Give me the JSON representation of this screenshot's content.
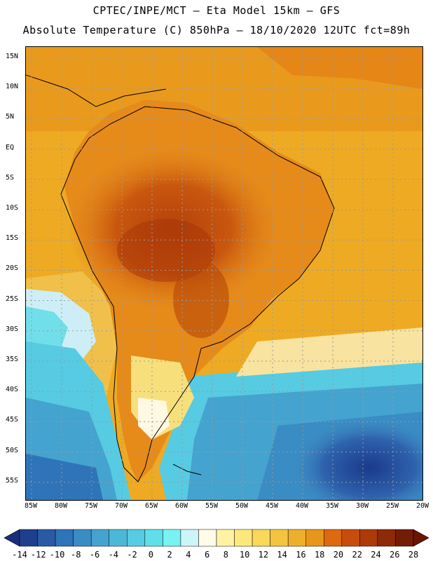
{
  "title_line1": "CPTEC/INPE/MCT –  Eta Model 15km – GFS",
  "title_line2": "Absolute Temperature (C) 850hPa – 18/10/2020 12UTC fct=89h",
  "lat_labels": [
    "15N",
    "10N",
    "5N",
    "EQ",
    "5S",
    "10S",
    "15S",
    "20S",
    "25S",
    "30S",
    "35S",
    "40S",
    "45S",
    "50S",
    "55S"
  ],
  "lon_labels": [
    "85W",
    "80W",
    "75W",
    "70W",
    "65W",
    "60W",
    "55W",
    "50W",
    "45W",
    "40W",
    "35W",
    "30W",
    "25W",
    "20W"
  ],
  "colorbar": {
    "labels": [
      "-14",
      "-12",
      "-10",
      "-8",
      "-6",
      "-4",
      "-2",
      "0",
      "2",
      "4",
      "6",
      "8",
      "10",
      "12",
      "14",
      "16",
      "18",
      "20",
      "22",
      "24",
      "26",
      "28"
    ],
    "colors": [
      "#1e3f8e",
      "#2a5aa3",
      "#2f73b8",
      "#3a8cc4",
      "#45a3cf",
      "#4cb8d8",
      "#56cbe2",
      "#5fdfea",
      "#78f2f2",
      "#cdf4f8",
      "#fffbe8",
      "#fff2a3",
      "#fee87c",
      "#f9d85a",
      "#f3c440",
      "#eeb02c",
      "#e8951c",
      "#dd6910",
      "#c94d0a",
      "#ad3a08",
      "#8e2a07",
      "#741d06"
    ],
    "min_color": "#1a2f7a",
    "max_color": "#6b1405"
  },
  "map_colors": {
    "gridline": "#9a9a9a",
    "coastline": "#000000"
  }
}
